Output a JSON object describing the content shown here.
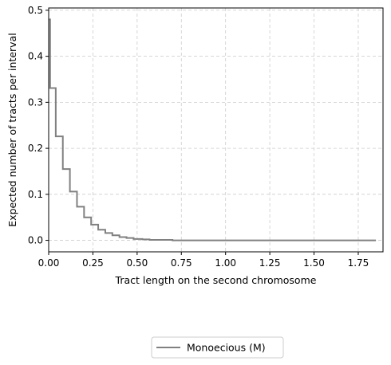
{
  "chart_data": {
    "type": "line",
    "step": true,
    "title": "",
    "xlabel": "Tract length on the second chromosome",
    "ylabel": "Expected number of tracts per interval",
    "xlim": [
      0,
      1.89
    ],
    "ylim": [
      -0.025,
      0.505
    ],
    "xticks": [
      0,
      0.25,
      0.5,
      0.75,
      1.0,
      1.25,
      1.5,
      1.75
    ],
    "xtick_labels": [
      "0.00",
      "0.25",
      "0.50",
      "0.75",
      "1.00",
      "1.25",
      "1.50",
      "1.75"
    ],
    "yticks": [
      0,
      0.1,
      0.2,
      0.3,
      0.4,
      0.5
    ],
    "ytick_labels": [
      "0.0",
      "0.1",
      "0.2",
      "0.3",
      "0.4",
      "0.5"
    ],
    "grid": true,
    "legend_position": "bottom-center-outside",
    "series": [
      {
        "name": "Monoecious (M)",
        "color": "#808080",
        "x": [
          0.0,
          0.008,
          0.04,
          0.08,
          0.12,
          0.16,
          0.2,
          0.24,
          0.28,
          0.32,
          0.36,
          0.4,
          0.44,
          0.48,
          0.53,
          0.57,
          0.7,
          1.0,
          1.5,
          1.85
        ],
        "y": [
          0.48,
          0.331,
          0.226,
          0.155,
          0.106,
          0.073,
          0.05,
          0.034,
          0.023,
          0.016,
          0.011,
          0.007,
          0.005,
          0.003,
          0.002,
          0.001,
          0.0,
          0.0,
          0.0,
          0.0
        ]
      }
    ]
  }
}
